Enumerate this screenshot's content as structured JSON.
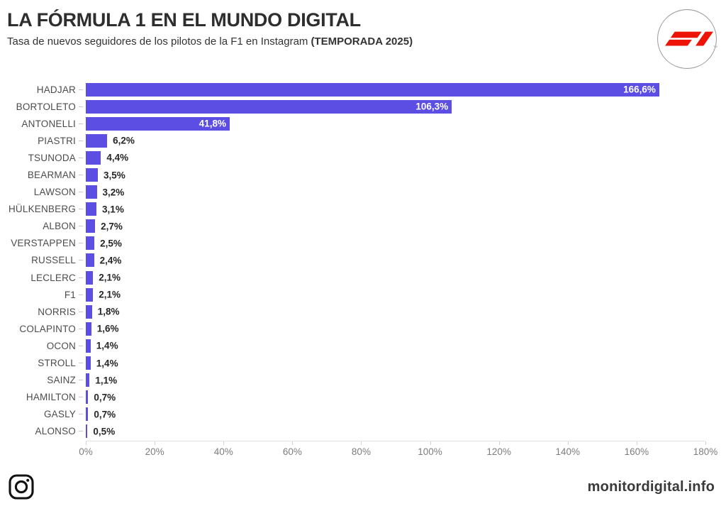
{
  "header": {
    "title": "LA FÓRMULA 1 EN EL MUNDO DIGITAL",
    "subtitle": "Tasa de nuevos seguidores de los pilotos de la F1 en Instagram",
    "subtitle_emphasis": "(TEMPORADA 2025)"
  },
  "icons": {
    "header_badge": "f1-logo",
    "footer_left": "instagram-icon"
  },
  "colors": {
    "bar": "#5C4EE2",
    "bar_label_inside": "#FFFFFF",
    "value_label_outside": "#262626",
    "axis_label": "#7D7D7D",
    "f1_red": "#ED1405",
    "title_text": "#2E2E2E"
  },
  "chart_data": {
    "type": "bar",
    "orientation": "horizontal",
    "title": "LA FÓRMULA 1 EN EL MUNDO DIGITAL",
    "subtitle": "Tasa de nuevos seguidores de los pilotos de la F1 en Instagram (TEMPORADA 2025)",
    "categories": [
      "HADJAR",
      "BORTOLETO",
      "ANTONELLI",
      "PIASTRI",
      "TSUNODA",
      "BEARMAN",
      "LAWSON",
      "HÜLKENBERG",
      "ALBON",
      "VERSTAPPEN",
      "RUSSELL",
      "LECLERC",
      "F1",
      "NORRIS",
      "COLAPINTO",
      "OCON",
      "STROLL",
      "SAINZ",
      "HAMILTON",
      "GASLY",
      "ALONSO"
    ],
    "values": [
      166.6,
      106.3,
      41.8,
      6.2,
      4.4,
      3.5,
      3.2,
      3.1,
      2.7,
      2.5,
      2.4,
      2.1,
      2.1,
      1.8,
      1.6,
      1.4,
      1.4,
      1.1,
      0.7,
      0.7,
      0.5
    ],
    "value_labels": [
      "166,6%",
      "106,3%",
      "41,8%",
      "6,2%",
      "4,4%",
      "3,5%",
      "3,2%",
      "3,1%",
      "2,7%",
      "2,5%",
      "2,4%",
      "2,1%",
      "2,1%",
      "1,8%",
      "1,6%",
      "1,4%",
      "1,4%",
      "1,1%",
      "0,7%",
      "0,7%",
      "0,5%"
    ],
    "xlim": [
      0,
      180
    ],
    "tick_values": [
      0,
      20,
      40,
      60,
      80,
      100,
      120,
      140,
      160,
      180
    ],
    "tick_labels": [
      "0%",
      "20%",
      "40%",
      "60%",
      "80%",
      "100%",
      "120%",
      "140%",
      "160%",
      "180%"
    ],
    "grid": false,
    "legend": false,
    "inside_label_threshold": 20
  },
  "footer": {
    "site": "monitordigital.info"
  }
}
